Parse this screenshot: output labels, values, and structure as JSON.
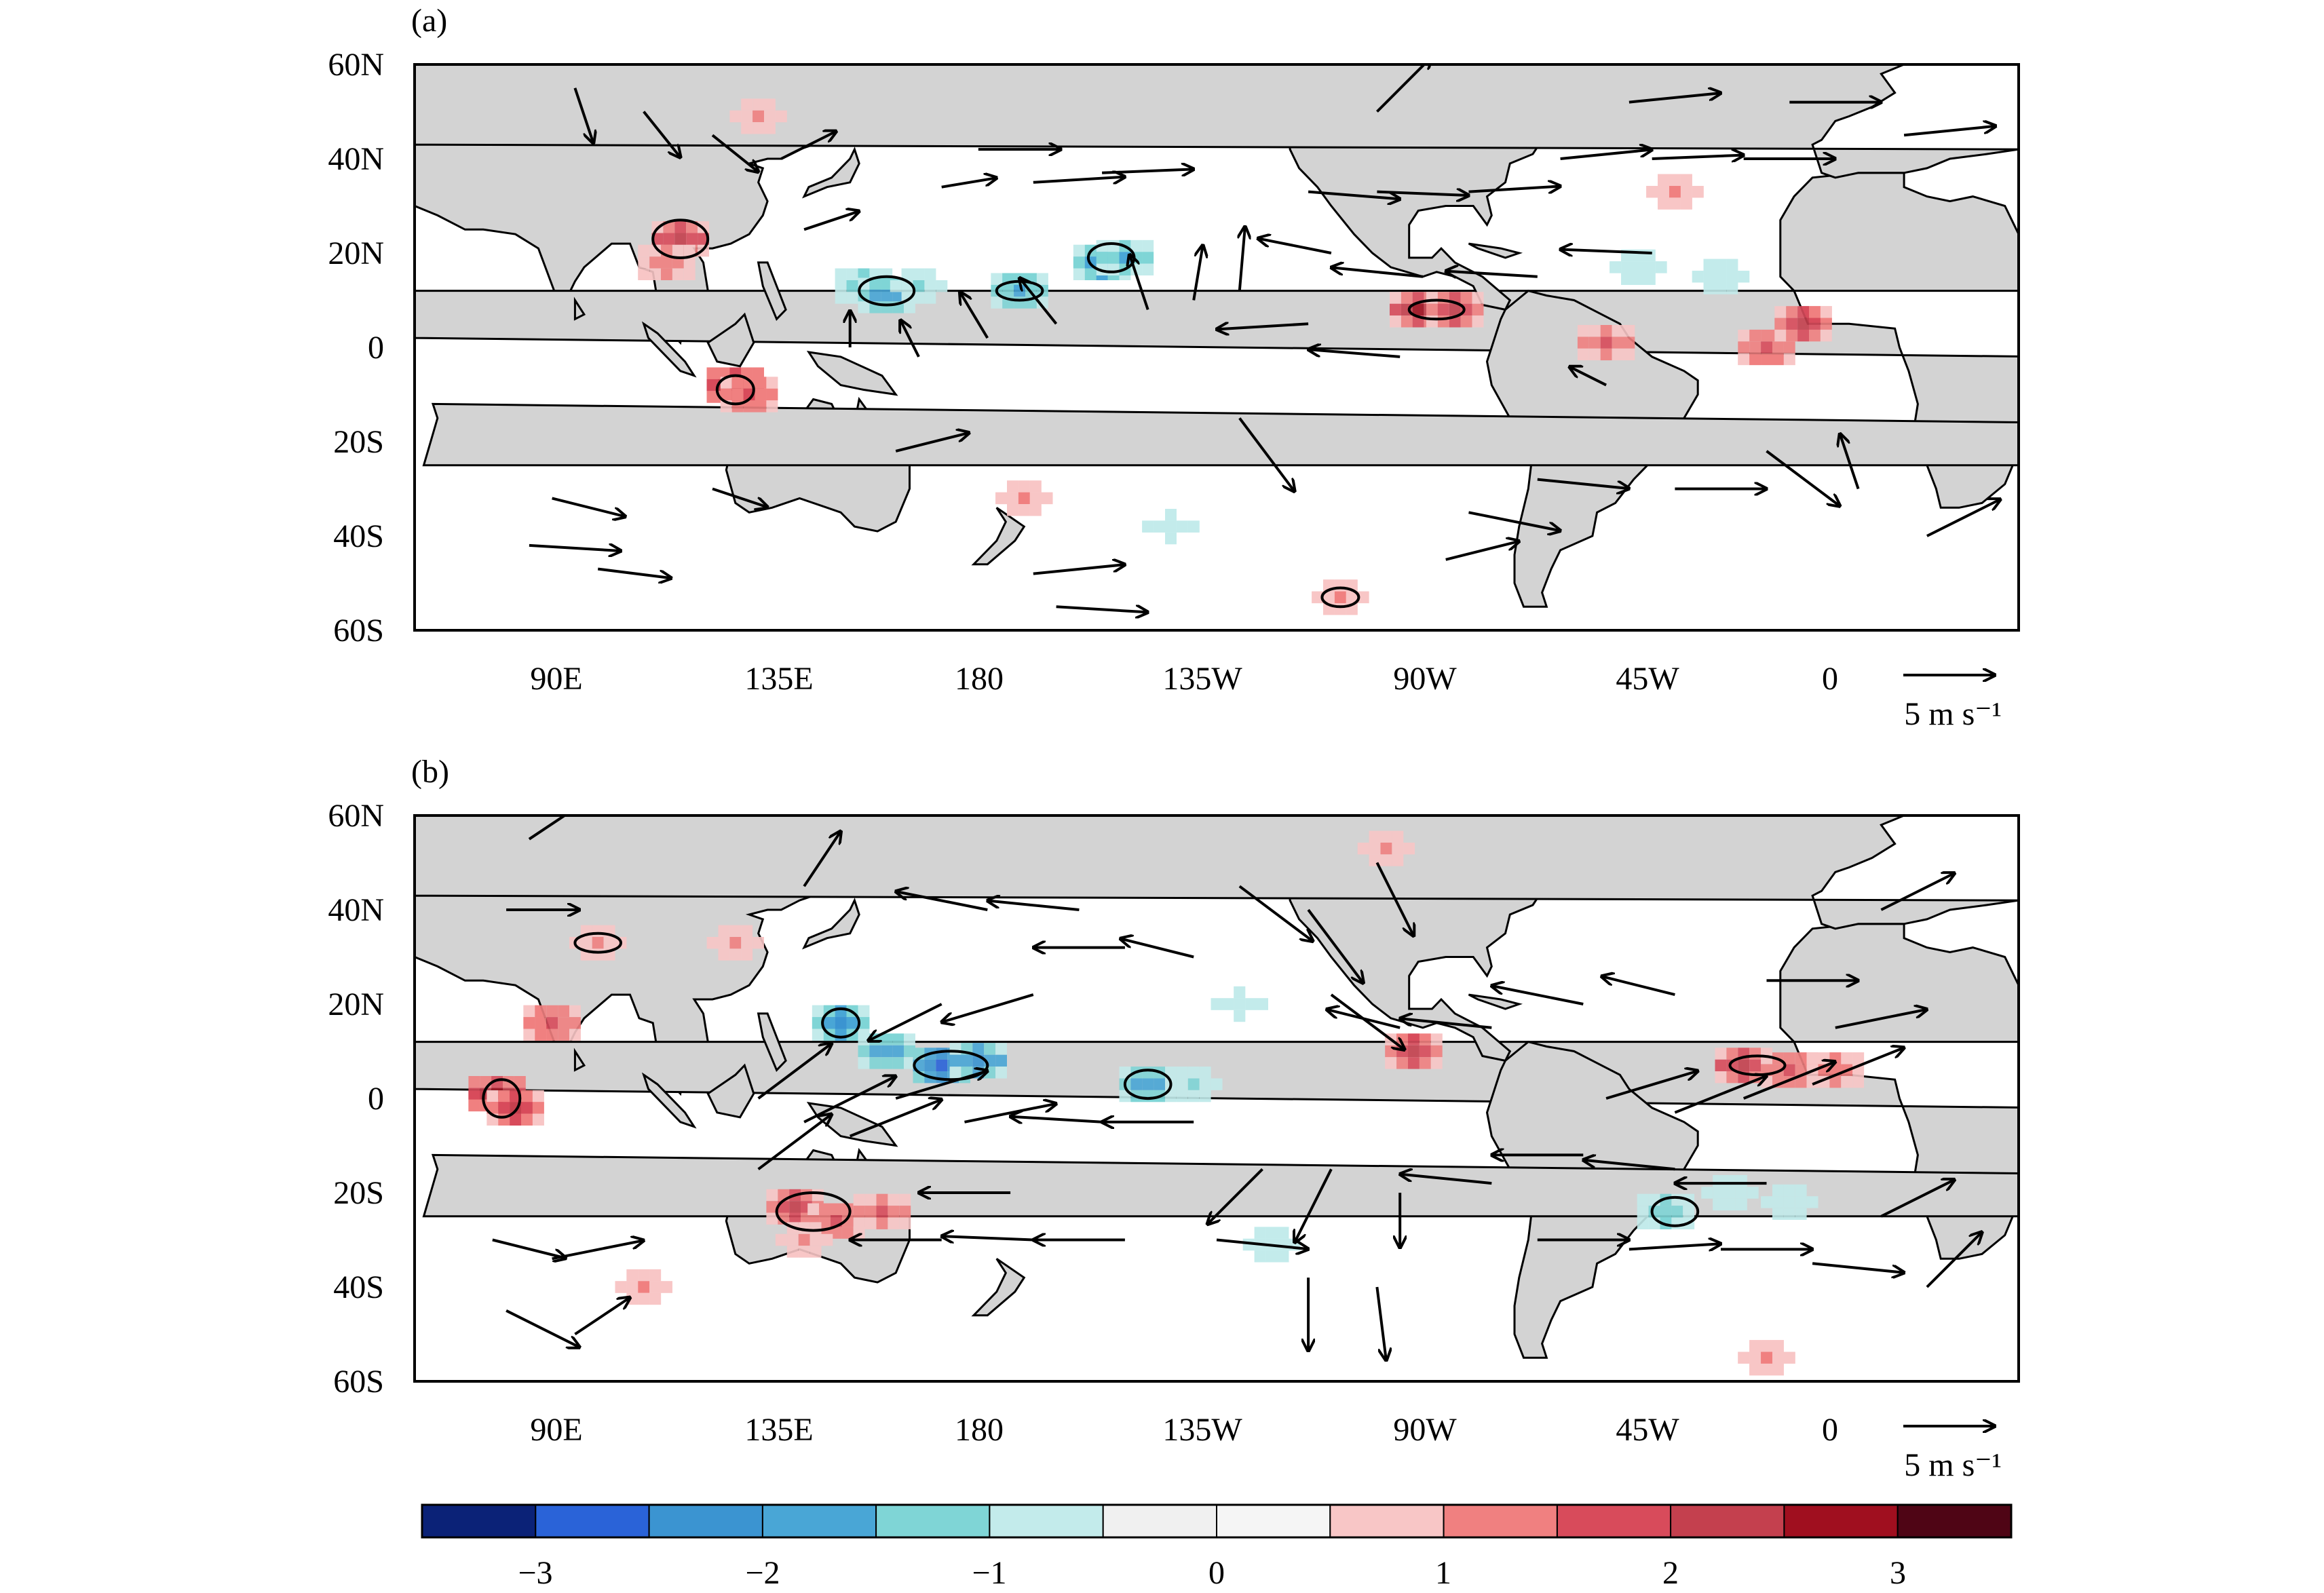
{
  "figure": {
    "panels": [
      {
        "label": "(a)",
        "lat_ticks": [
          "60N",
          "40N",
          "20N",
          "0",
          "20S",
          "40S",
          "60S"
        ],
        "lon_ticks": [
          "90E",
          "135E",
          "180",
          "135W",
          "90W",
          "45W",
          "0"
        ],
        "reference_vector": {
          "magnitude": 5,
          "label": "5 m s⁻¹"
        },
        "shading": [
          {
            "lon": 103,
            "lat": 23,
            "v": 2.4
          },
          {
            "lon": 100,
            "lat": 18,
            "v": 1.4
          },
          {
            "lon": 115,
            "lat": -8,
            "v": 2.6
          },
          {
            "lon": 118,
            "lat": -10,
            "v": 1.8
          },
          {
            "lon": 143,
            "lat": 13,
            "v": -1.4
          },
          {
            "lon": 148,
            "lat": 11,
            "v": -2.0
          },
          {
            "lon": 155,
            "lat": 13,
            "v": -1.2
          },
          {
            "lon": 177,
            "lat": 12,
            "v": -1.8
          },
          {
            "lon": 195,
            "lat": 18,
            "v": -2.2
          },
          {
            "lon": 200,
            "lat": 19,
            "v": -1.6
          },
          {
            "lon": 264,
            "lat": 8,
            "v": 2.5
          },
          {
            "lon": 272,
            "lat": 8,
            "v": 2.0
          },
          {
            "lon": 305,
            "lat": 1,
            "v": 1.6
          },
          {
            "lon": 340,
            "lat": 0,
            "v": 1.8
          },
          {
            "lon": 348,
            "lat": 5,
            "v": 2.3
          },
          {
            "lon": 320,
            "lat": 33,
            "v": 1.2
          },
          {
            "lon": 120,
            "lat": 49,
            "v": 1.0
          },
          {
            "lon": 178,
            "lat": -32,
            "v": 1.2
          },
          {
            "lon": 247,
            "lat": -53,
            "v": 1.2
          },
          {
            "lon": 330,
            "lat": 15,
            "v": -1.0
          },
          {
            "lon": 312,
            "lat": 17,
            "v": -0.9
          },
          {
            "lon": 210,
            "lat": -38,
            "v": -0.8
          }
        ],
        "contours": [
          {
            "lon": 103,
            "lat": 23,
            "rx": 6,
            "ry": 4
          },
          {
            "lon": 115,
            "lat": -9,
            "rx": 4,
            "ry": 3
          },
          {
            "lon": 148,
            "lat": 12,
            "rx": 6,
            "ry": 3
          },
          {
            "lon": 177,
            "lat": 12,
            "rx": 5,
            "ry": 2
          },
          {
            "lon": 197,
            "lat": 19,
            "rx": 5,
            "ry": 3
          },
          {
            "lon": 268,
            "lat": 8,
            "rx": 6,
            "ry": 2
          },
          {
            "lon": 247,
            "lat": -53,
            "rx": 4,
            "ry": 2
          }
        ],
        "vectors": [
          {
            "lon": 168,
            "lat": 42,
            "u": 4.5,
            "v": 0
          },
          {
            "lon": 180,
            "lat": 35,
            "u": 5,
            "v": 0.3
          },
          {
            "lon": 195,
            "lat": 37,
            "u": 5,
            "v": 0.2
          },
          {
            "lon": 160,
            "lat": 34,
            "u": 3,
            "v": 0.5
          },
          {
            "lon": 240,
            "lat": 33,
            "u": 5,
            "v": -0.4
          },
          {
            "lon": 255,
            "lat": 33,
            "u": 5,
            "v": -0.2
          },
          {
            "lon": 275,
            "lat": 33,
            "u": 5,
            "v": 0.3
          },
          {
            "lon": 295,
            "lat": 40,
            "u": 5,
            "v": 0.5
          },
          {
            "lon": 315,
            "lat": 40,
            "u": 5,
            "v": 0.2
          },
          {
            "lon": 335,
            "lat": 40,
            "u": 5,
            "v": 0
          },
          {
            "lon": 245,
            "lat": 20,
            "u": -4,
            "v": 0.8
          },
          {
            "lon": 265,
            "lat": 15,
            "u": -5,
            "v": 0.5
          },
          {
            "lon": 290,
            "lat": 15,
            "u": -5,
            "v": 0.3
          },
          {
            "lon": 315,
            "lat": 20,
            "u": -5,
            "v": 0.2
          },
          {
            "lon": 240,
            "lat": 5,
            "u": -5,
            "v": -0.3
          },
          {
            "lon": 260,
            "lat": -2,
            "u": -5,
            "v": 0.4
          },
          {
            "lon": 305,
            "lat": -8,
            "u": -2,
            "v": 1
          },
          {
            "lon": 215,
            "lat": 10,
            "u": 0.5,
            "v": 3
          },
          {
            "lon": 225,
            "lat": 12,
            "u": 0.3,
            "v": 3.5
          },
          {
            "lon": 205,
            "lat": 8,
            "u": -1,
            "v": 3
          },
          {
            "lon": 185,
            "lat": 5,
            "u": -2,
            "v": 2.5
          },
          {
            "lon": 170,
            "lat": 2,
            "u": -1.5,
            "v": 2.5
          },
          {
            "lon": 155,
            "lat": -2,
            "u": -1,
            "v": 2
          },
          {
            "lon": 140,
            "lat": 0,
            "u": 0,
            "v": 2
          },
          {
            "lon": 80,
            "lat": 55,
            "u": 1,
            "v": -3
          },
          {
            "lon": 95,
            "lat": 50,
            "u": 2,
            "v": -2.5
          },
          {
            "lon": 110,
            "lat": 45,
            "u": 2.5,
            "v": -2
          },
          {
            "lon": 125,
            "lat": 40,
            "u": 3,
            "v": 1.5
          },
          {
            "lon": 130,
            "lat": 25,
            "u": 3,
            "v": 1
          },
          {
            "lon": 75,
            "lat": -32,
            "u": 4,
            "v": -1
          },
          {
            "lon": 70,
            "lat": -42,
            "u": 5,
            "v": -0.3
          },
          {
            "lon": 85,
            "lat": -47,
            "u": 4,
            "v": -0.5
          },
          {
            "lon": 110,
            "lat": -30,
            "u": 3,
            "v": -1
          },
          {
            "lon": 150,
            "lat": -22,
            "u": 4,
            "v": 1
          },
          {
            "lon": 180,
            "lat": -48,
            "u": 5,
            "v": 0.5
          },
          {
            "lon": 185,
            "lat": -55,
            "u": 5,
            "v": -0.3
          },
          {
            "lon": 225,
            "lat": -15,
            "u": 3,
            "v": -4
          },
          {
            "lon": 275,
            "lat": -35,
            "u": 5,
            "v": -1
          },
          {
            "lon": 290,
            "lat": -28,
            "u": 5,
            "v": -0.5
          },
          {
            "lon": 320,
            "lat": -30,
            "u": 5,
            "v": 0
          },
          {
            "lon": 340,
            "lat": -22,
            "u": 4,
            "v": -3
          },
          {
            "lon": 0,
            "lat": -30,
            "u": -1,
            "v": 3
          },
          {
            "lon": 15,
            "lat": -40,
            "u": 4,
            "v": 2
          },
          {
            "lon": 270,
            "lat": -45,
            "u": 4,
            "v": 1
          },
          {
            "lon": 255,
            "lat": 50,
            "u": 3,
            "v": 3
          },
          {
            "lon": 310,
            "lat": 52,
            "u": 5,
            "v": 0.5
          },
          {
            "lon": 345,
            "lat": 52,
            "u": 5,
            "v": 0
          },
          {
            "lon": 10,
            "lat": 45,
            "u": 5,
            "v": 0.5
          }
        ]
      },
      {
        "label": "(b)",
        "lat_ticks": [
          "60N",
          "40N",
          "20N",
          "0",
          "20S",
          "40S",
          "60S"
        ],
        "lon_ticks": [
          "90E",
          "135E",
          "180",
          "135W",
          "90W",
          "45W",
          "0"
        ],
        "reference_vector": {
          "magnitude": 5,
          "label": "5 m s⁻¹"
        },
        "shading": [
          {
            "lon": 63,
            "lat": 1,
            "v": 2.6
          },
          {
            "lon": 67,
            "lat": -2,
            "v": 2.0
          },
          {
            "lon": 75,
            "lat": 16,
            "v": 1.8
          },
          {
            "lon": 85,
            "lat": 33,
            "v": 1.2
          },
          {
            "lon": 138,
            "lat": 16,
            "v": -2.2
          },
          {
            "lon": 148,
            "lat": 10,
            "v": -2.0
          },
          {
            "lon": 160,
            "lat": 7,
            "v": -2.8
          },
          {
            "lon": 168,
            "lat": 8,
            "v": -2.4
          },
          {
            "lon": 205,
            "lat": 3,
            "v": -2.0
          },
          {
            "lon": 215,
            "lat": 3,
            "v": -1.2
          },
          {
            "lon": 128,
            "lat": -23,
            "v": 2.2
          },
          {
            "lon": 137,
            "lat": -26,
            "v": 1.8
          },
          {
            "lon": 147,
            "lat": -24,
            "v": 1.6
          },
          {
            "lon": 130,
            "lat": -30,
            "v": 1.2
          },
          {
            "lon": 335,
            "lat": 7,
            "v": 2.4
          },
          {
            "lon": 345,
            "lat": 6,
            "v": 1.8
          },
          {
            "lon": 355,
            "lat": 6,
            "v": 1.4
          },
          {
            "lon": 263,
            "lat": 10,
            "v": 2.0
          },
          {
            "lon": 318,
            "lat": -24,
            "v": -1.4
          },
          {
            "lon": 332,
            "lat": -20,
            "v": -1.0
          },
          {
            "lon": 345,
            "lat": -22,
            "v": -0.9
          },
          {
            "lon": 232,
            "lat": -31,
            "v": -1.0
          },
          {
            "lon": 225,
            "lat": 20,
            "v": -0.8
          },
          {
            "lon": 115,
            "lat": 33,
            "v": 1.0
          },
          {
            "lon": 257,
            "lat": 53,
            "v": 1.2
          },
          {
            "lon": 95,
            "lat": -40,
            "v": 1.0
          },
          {
            "lon": 340,
            "lat": -55,
            "v": 1.0
          }
        ],
        "contours": [
          {
            "lon": 64,
            "lat": 0,
            "rx": 4,
            "ry": 4
          },
          {
            "lon": 138,
            "lat": 16,
            "rx": 4,
            "ry": 3
          },
          {
            "lon": 162,
            "lat": 7,
            "rx": 8,
            "ry": 3
          },
          {
            "lon": 205,
            "lat": 3,
            "rx": 5,
            "ry": 3
          },
          {
            "lon": 132,
            "lat": -24,
            "rx": 8,
            "ry": 4
          },
          {
            "lon": 338,
            "lat": 7,
            "rx": 6,
            "ry": 2
          },
          {
            "lon": 320,
            "lat": -24,
            "rx": 5,
            "ry": 3
          },
          {
            "lon": 85,
            "lat": 33,
            "rx": 5,
            "ry": 2
          }
        ],
        "vectors": [
          {
            "lon": 120,
            "lat": 0,
            "u": 4,
            "v": 3
          },
          {
            "lon": 130,
            "lat": -5,
            "u": 5,
            "v": 2.5
          },
          {
            "lon": 140,
            "lat": -8,
            "u": 5,
            "v": 2
          },
          {
            "lon": 120,
            "lat": -15,
            "u": 4,
            "v": 3
          },
          {
            "lon": 150,
            "lat": 0,
            "u": 5,
            "v": 1.5
          },
          {
            "lon": 165,
            "lat": -5,
            "u": 5,
            "v": 1
          },
          {
            "lon": 160,
            "lat": 20,
            "u": -4,
            "v": -2
          },
          {
            "lon": 180,
            "lat": 22,
            "u": -5,
            "v": -1.5
          },
          {
            "lon": 170,
            "lat": 40,
            "u": -5,
            "v": 1
          },
          {
            "lon": 190,
            "lat": 40,
            "u": -5,
            "v": 0.5
          },
          {
            "lon": 200,
            "lat": 32,
            "u": -5,
            "v": 0
          },
          {
            "lon": 215,
            "lat": 30,
            "u": -4,
            "v": 1
          },
          {
            "lon": 225,
            "lat": 45,
            "u": 4,
            "v": -3
          },
          {
            "lon": 240,
            "lat": 40,
            "u": 3,
            "v": -4
          },
          {
            "lon": 255,
            "lat": 50,
            "u": 2,
            "v": -4
          },
          {
            "lon": 245,
            "lat": 22,
            "u": 4,
            "v": -3
          },
          {
            "lon": 260,
            "lat": 15,
            "u": -4,
            "v": 1
          },
          {
            "lon": 280,
            "lat": 15,
            "u": -5,
            "v": 0.5
          },
          {
            "lon": 300,
            "lat": 20,
            "u": -5,
            "v": 1
          },
          {
            "lon": 320,
            "lat": 22,
            "u": -4,
            "v": 1
          },
          {
            "lon": 305,
            "lat": 0,
            "u": 5,
            "v": 1.5
          },
          {
            "lon": 320,
            "lat": -3,
            "u": 5,
            "v": 2
          },
          {
            "lon": 335,
            "lat": 0,
            "u": 5,
            "v": 2
          },
          {
            "lon": 350,
            "lat": 3,
            "u": 5,
            "v": 2
          },
          {
            "lon": 300,
            "lat": -12,
            "u": -5,
            "v": 0
          },
          {
            "lon": 320,
            "lat": -15,
            "u": -5,
            "v": 0.5
          },
          {
            "lon": 340,
            "lat": -18,
            "u": -5,
            "v": 0
          },
          {
            "lon": 280,
            "lat": -18,
            "u": -5,
            "v": 0.5
          },
          {
            "lon": 260,
            "lat": -20,
            "u": 0,
            "v": -3
          },
          {
            "lon": 245,
            "lat": -15,
            "u": -2,
            "v": -4
          },
          {
            "lon": 230,
            "lat": -15,
            "u": -3,
            "v": -3
          },
          {
            "lon": 215,
            "lat": -5,
            "u": -5,
            "v": 0
          },
          {
            "lon": 195,
            "lat": -5,
            "u": -5,
            "v": 0.3
          },
          {
            "lon": 175,
            "lat": -20,
            "u": -5,
            "v": 0
          },
          {
            "lon": 160,
            "lat": -30,
            "u": -5,
            "v": 0
          },
          {
            "lon": 180,
            "lat": -30,
            "u": -5,
            "v": 0.2
          },
          {
            "lon": 200,
            "lat": -30,
            "u": -5,
            "v": 0
          },
          {
            "lon": 220,
            "lat": -30,
            "u": 5,
            "v": -0.5
          },
          {
            "lon": 240,
            "lat": -38,
            "u": 0,
            "v": -4
          },
          {
            "lon": 255,
            "lat": -40,
            "u": 0.5,
            "v": -4
          },
          {
            "lon": 290,
            "lat": -30,
            "u": 5,
            "v": 0
          },
          {
            "lon": 310,
            "lat": -32,
            "u": 5,
            "v": 0.3
          },
          {
            "lon": 330,
            "lat": -32,
            "u": 5,
            "v": 0
          },
          {
            "lon": 350,
            "lat": -35,
            "u": 5,
            "v": -0.5
          },
          {
            "lon": 5,
            "lat": -25,
            "u": 4,
            "v": 2
          },
          {
            "lon": 15,
            "lat": -40,
            "u": 3,
            "v": 3
          },
          {
            "lon": 62,
            "lat": -30,
            "u": 4,
            "v": -1
          },
          {
            "lon": 75,
            "lat": -34,
            "u": 5,
            "v": 1
          },
          {
            "lon": 65,
            "lat": -45,
            "u": 4,
            "v": -2
          },
          {
            "lon": 80,
            "lat": -50,
            "u": 3,
            "v": 2
          },
          {
            "lon": 65,
            "lat": 40,
            "u": 4,
            "v": 0
          },
          {
            "lon": 70,
            "lat": 55,
            "u": 3,
            "v": 2
          },
          {
            "lon": 340,
            "lat": 25,
            "u": 5,
            "v": 0
          },
          {
            "lon": 355,
            "lat": 15,
            "u": 5,
            "v": 1
          },
          {
            "lon": 5,
            "lat": 40,
            "u": 4,
            "v": 2
          },
          {
            "lon": 130,
            "lat": 45,
            "u": 2,
            "v": 3
          }
        ]
      }
    ],
    "colorbar": {
      "colors": [
        "#0b2277",
        "#2a63d8",
        "#3b94d1",
        "#49a6d6",
        "#7fd5d6",
        "#c3ebeb",
        "#f0f0f0",
        "#f5f5f5",
        "#f8c6c6",
        "#f08080",
        "#d84b5b",
        "#c4404e",
        "#a00f1f",
        "#4f0515"
      ],
      "levels": [
        -3.5,
        -3,
        -2.5,
        -2,
        -1.5,
        -1,
        -0.5,
        0,
        0.5,
        1,
        1.5,
        2,
        2.5,
        3,
        3.5
      ],
      "tick_labels": [
        "−3",
        "−2",
        "−1",
        "0",
        "1",
        "2",
        "3"
      ],
      "tick_values": [
        -3,
        -2,
        -1,
        0,
        1,
        2,
        3
      ]
    }
  }
}
